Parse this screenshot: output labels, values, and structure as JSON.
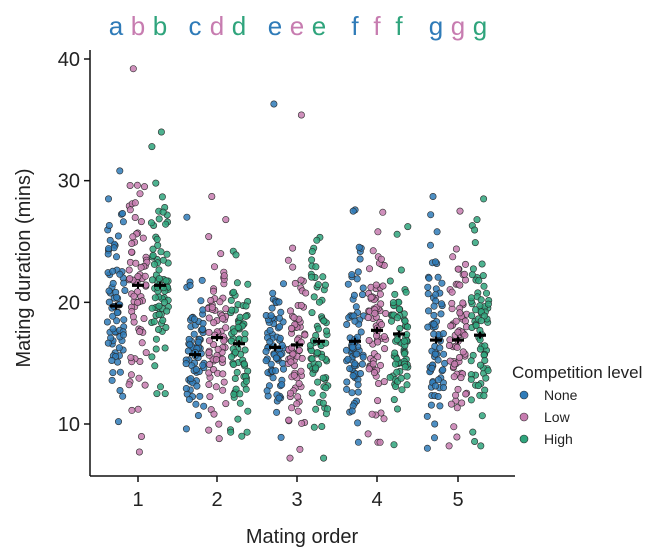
{
  "colors": {
    "None": "#2f7bb8",
    "Low": "#c77cb0",
    "High": "#2fa47c"
  },
  "chart_data": {
    "type": "scatter",
    "subtype": "jittered strip plot with means",
    "xlabel": "Mating order",
    "ylabel": "Mating duration (mins)",
    "categories": [
      "1",
      "2",
      "3",
      "4",
      "5"
    ],
    "ylim": [
      5,
      41
    ],
    "yticks": [
      10,
      20,
      30,
      40
    ],
    "grid": false,
    "legend": {
      "title": "Competition level",
      "placement": "right",
      "entries": [
        "None",
        "Low",
        "High"
      ]
    },
    "significance_letters": [
      [
        {
          "text": "a",
          "series": "None"
        },
        {
          "text": "b",
          "series": "Low"
        },
        {
          "text": "b",
          "series": "High"
        }
      ],
      [
        {
          "text": "c",
          "series": "None"
        },
        {
          "text": "d",
          "series": "Low"
        },
        {
          "text": "d",
          "series": "High"
        }
      ],
      [
        {
          "text": "e",
          "series": "None"
        },
        {
          "text": "e",
          "series": "Low"
        },
        {
          "text": "e",
          "series": "High"
        }
      ],
      [
        {
          "text": "f",
          "series": "None"
        },
        {
          "text": "f",
          "series": "Low"
        },
        {
          "text": "f",
          "series": "High"
        }
      ],
      [
        {
          "text": "g",
          "series": "None"
        },
        {
          "text": "g",
          "series": "Low"
        },
        {
          "text": "g",
          "series": "High"
        }
      ]
    ],
    "series": [
      {
        "name": "None",
        "means": [
          19.7,
          15.7,
          16.3,
          16.8,
          16.9
        ],
        "spread": [
          {
            "min": 10.2,
            "max": 32.7,
            "outliers": [
              30.8,
              28.5
            ]
          },
          {
            "min": 9.6,
            "max": 28.0,
            "outliers": [
              27.0
            ]
          },
          {
            "min": 8.9,
            "max": 36.3,
            "outliers": [
              36.3
            ]
          },
          {
            "min": 8.5,
            "max": 27.6,
            "outliers": [
              27.6,
              27.5
            ]
          },
          {
            "min": 8.0,
            "max": 28.7,
            "outliers": [
              28.7,
              27.2
            ]
          }
        ]
      },
      {
        "name": "Low",
        "means": [
          21.4,
          17.1,
          16.5,
          17.7,
          16.9
        ],
        "spread": [
          {
            "min": 7.7,
            "max": 39.2,
            "outliers": [
              39.2,
              29.6
            ]
          },
          {
            "min": 8.8,
            "max": 28.7,
            "outliers": [
              28.7,
              26.8
            ]
          },
          {
            "min": 7.2,
            "max": 35.4,
            "outliers": [
              35.4
            ]
          },
          {
            "min": 8.5,
            "max": 27.4,
            "outliers": [
              27.4,
              25.8
            ]
          },
          {
            "min": 8.2,
            "max": 27.5,
            "outliers": [
              27.5
            ]
          }
        ]
      },
      {
        "name": "High",
        "means": [
          21.4,
          16.6,
          16.8,
          17.4,
          17.3
        ],
        "spread": [
          {
            "min": 12.5,
            "max": 34.0,
            "outliers": [
              34.0,
              32.8,
              29.8
            ]
          },
          {
            "min": 9.0,
            "max": 23.9,
            "outliers": [
              23.9
            ]
          },
          {
            "min": 7.2,
            "max": 25.1,
            "outliers": [
              25.1
            ]
          },
          {
            "min": 8.3,
            "max": 23.3,
            "outliers": []
          },
          {
            "min": 8.2,
            "max": 28.5,
            "outliers": [
              28.5,
              26.8
            ]
          }
        ]
      }
    ]
  }
}
